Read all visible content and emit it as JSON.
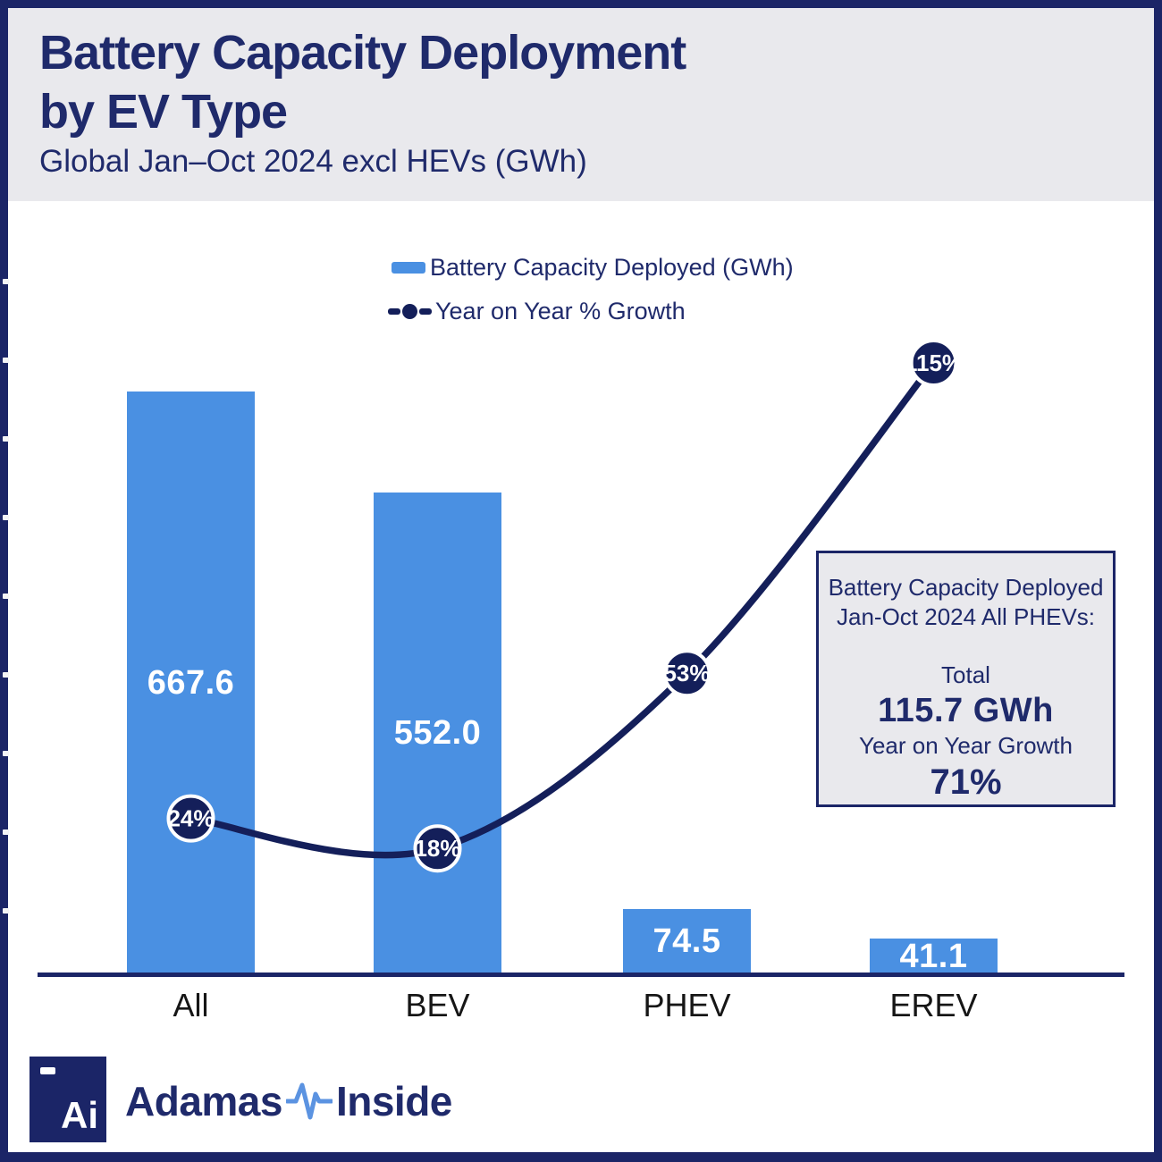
{
  "header": {
    "title_line1": "Battery Capacity Deployment",
    "title_line2": "by EV Type",
    "subtitle": "Global Jan–Oct 2024 excl HEVs (GWh)"
  },
  "legend": {
    "bars_label": "Battery Capacity Deployed (GWh)",
    "line_label": "Year on Year % Growth"
  },
  "chart_data": {
    "type": "bar",
    "categories": [
      "All",
      "BEV",
      "PHEV",
      "EREV"
    ],
    "series": [
      {
        "name": "Battery Capacity Deployed (GWh)",
        "type": "bar",
        "values": [
          667.6,
          552.0,
          74.5,
          41.1
        ],
        "value_labels": [
          "667.6",
          "552.0",
          "74.5",
          "41.1"
        ],
        "color": "#4a90e2"
      },
      {
        "name": "Year on Year % Growth",
        "type": "line",
        "values": [
          24,
          18,
          53,
          115
        ],
        "value_labels": [
          "24%",
          "18%",
          "53%",
          "115%"
        ],
        "color": "#141f5a"
      }
    ],
    "title": "Battery Capacity Deployment by EV Type",
    "subtitle": "Global Jan–Oct 2024 excl HEVs (GWh)",
    "xlabel": "",
    "ylabel": "",
    "bar_ylim": [
      0,
      700
    ],
    "growth_ylim_pct": [
      0,
      130
    ],
    "grid": false,
    "legend_position": "top-center"
  },
  "annotation_box": {
    "line1": "Battery Capacity Deployed",
    "line2": "Jan-Oct 2024 All PHEVs:",
    "total_label": "Total",
    "total_value": "115.7 GWh",
    "growth_label": "Year on Year Growth",
    "growth_value": "71%"
  },
  "footer": {
    "logo_monogram": "Ai",
    "brand_left": "Adamas",
    "brand_right": "Inside"
  },
  "colors": {
    "bar_blue": "#4a90e2",
    "navy_text": "#1f2a6b",
    "line_navy": "#141f5a",
    "border_navy": "#1b2567",
    "panel_gray": "#e9e9ed",
    "axis_label": "#161616",
    "pulse_blue": "#5b93e1",
    "white": "#ffffff"
  }
}
